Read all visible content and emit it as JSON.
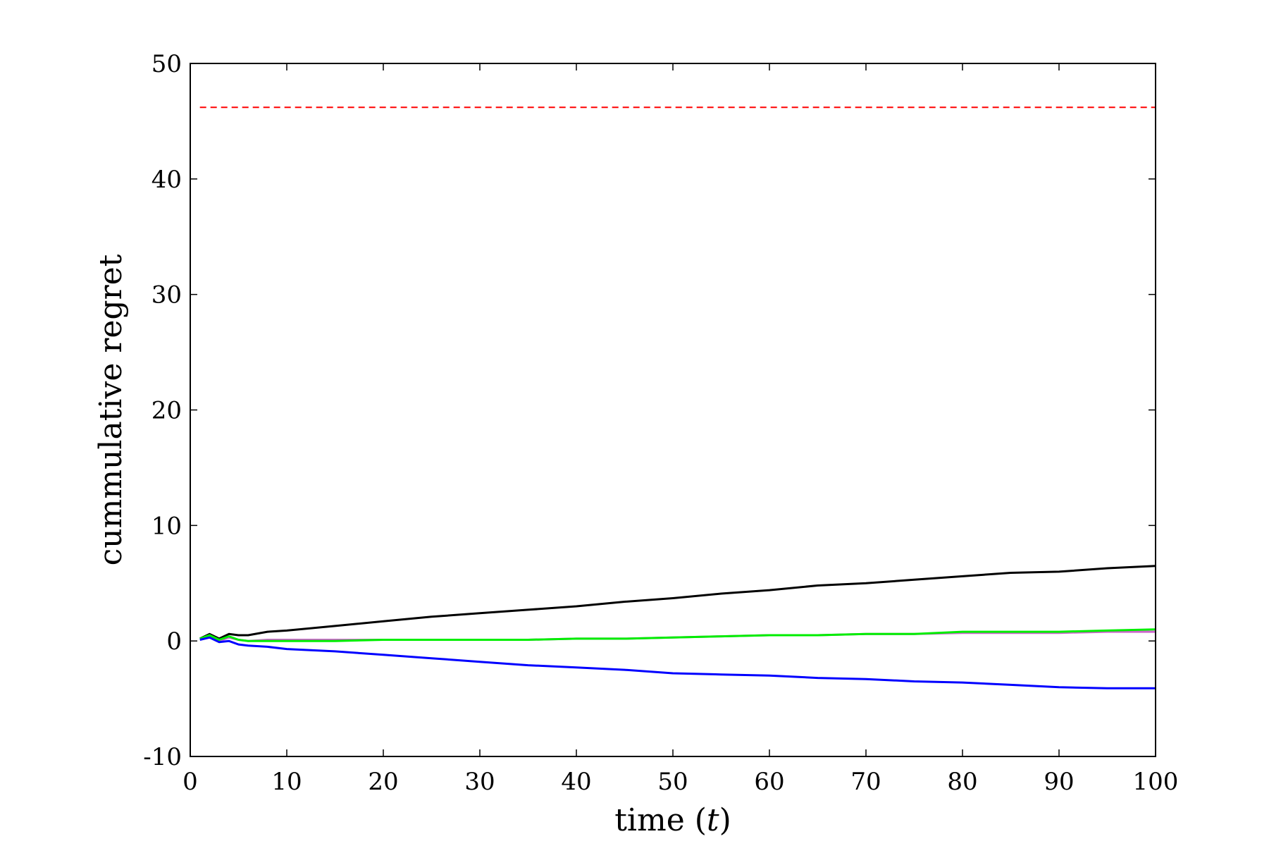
{
  "chart_data": {
    "type": "line",
    "title": "",
    "xlabel": "time (t)",
    "xlabel_parts": [
      "time (",
      "t",
      ")"
    ],
    "ylabel": "cummulative regret",
    "xlim": [
      0,
      100
    ],
    "ylim": [
      -10,
      50
    ],
    "x_ticks": [
      0,
      10,
      20,
      30,
      40,
      50,
      60,
      70,
      80,
      90,
      100
    ],
    "y_ticks": [
      -10,
      0,
      10,
      20,
      30,
      40,
      50
    ],
    "grid": false,
    "legend": "none",
    "series": [
      {
        "color": "#ff0000",
        "style": "dashed",
        "x": [
          1,
          100
        ],
        "y": [
          46.2,
          46.2
        ]
      },
      {
        "color": "#000000",
        "style": "solid",
        "x": [
          1,
          2,
          3,
          4,
          5,
          6,
          8,
          10,
          15,
          20,
          25,
          30,
          35,
          40,
          45,
          50,
          55,
          60,
          65,
          70,
          75,
          80,
          85,
          90,
          95,
          100
        ],
        "y": [
          0.2,
          0.6,
          0.2,
          0.6,
          0.5,
          0.5,
          0.8,
          0.9,
          1.3,
          1.7,
          2.1,
          2.4,
          2.7,
          3.0,
          3.4,
          3.7,
          4.1,
          4.4,
          4.8,
          5.0,
          5.3,
          5.6,
          5.9,
          6.0,
          6.3,
          6.5
        ]
      },
      {
        "color": "#cc66cc",
        "style": "solid",
        "x": [
          1,
          2,
          3,
          4,
          5,
          6,
          8,
          10,
          15,
          20,
          25,
          30,
          35,
          40,
          45,
          50,
          55,
          60,
          65,
          70,
          75,
          80,
          85,
          90,
          95,
          100
        ],
        "y": [
          0.2,
          0.4,
          0.0,
          0.3,
          0.1,
          0.0,
          0.1,
          0.1,
          0.1,
          0.1,
          0.1,
          0.1,
          0.1,
          0.2,
          0.2,
          0.3,
          0.4,
          0.5,
          0.5,
          0.6,
          0.6,
          0.7,
          0.7,
          0.7,
          0.8,
          0.8
        ]
      },
      {
        "color": "#00ee00",
        "style": "solid",
        "x": [
          1,
          2,
          3,
          4,
          5,
          6,
          8,
          10,
          15,
          20,
          25,
          30,
          35,
          40,
          45,
          50,
          55,
          60,
          65,
          70,
          75,
          80,
          85,
          90,
          95,
          100
        ],
        "y": [
          0.2,
          0.5,
          0.1,
          0.4,
          0.1,
          0.0,
          0.0,
          0.0,
          0.0,
          0.1,
          0.1,
          0.1,
          0.1,
          0.2,
          0.2,
          0.3,
          0.4,
          0.5,
          0.5,
          0.6,
          0.6,
          0.8,
          0.8,
          0.8,
          0.9,
          1.0
        ]
      },
      {
        "color": "#0000ff",
        "style": "solid",
        "x": [
          1,
          2,
          3,
          4,
          5,
          6,
          8,
          10,
          15,
          20,
          25,
          30,
          35,
          40,
          45,
          50,
          55,
          60,
          65,
          70,
          75,
          80,
          85,
          90,
          95,
          100
        ],
        "y": [
          0.1,
          0.3,
          -0.1,
          0.0,
          -0.3,
          -0.4,
          -0.5,
          -0.7,
          -0.9,
          -1.2,
          -1.5,
          -1.8,
          -2.1,
          -2.3,
          -2.5,
          -2.8,
          -2.9,
          -3.0,
          -3.2,
          -3.3,
          -3.5,
          -3.6,
          -3.8,
          -4.0,
          -4.1,
          -4.1
        ]
      }
    ]
  }
}
